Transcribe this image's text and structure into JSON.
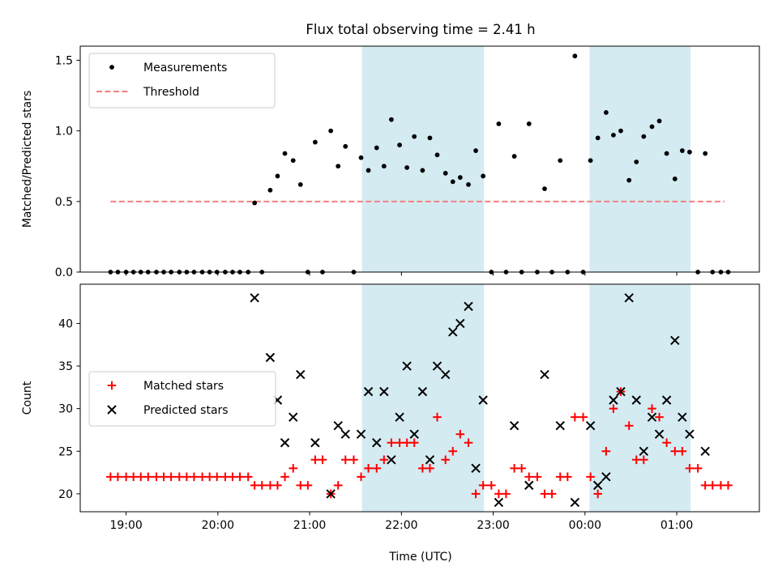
{
  "figure": {
    "title": "Flux total observing time = 2.41 h",
    "xlabel": "Time (UTC)"
  },
  "colors": {
    "shade": "#add8e6",
    "measurements": "#000000",
    "threshold": "#f08080",
    "matched": "#ff0000",
    "predicted": "#000000"
  },
  "chart_data": [
    {
      "type": "scatter",
      "panel": "top",
      "ylabel": "Matched/Predicted stars",
      "xlabel": "",
      "x_unit": "hours since 00:00 UTC",
      "xlim": [
        -5.5,
        1.9
      ],
      "ylim": [
        0.0,
        1.6
      ],
      "yticks": [
        0.0,
        0.5,
        1.0,
        1.5
      ],
      "ytick_labels": [
        "0.0",
        "0.5",
        "1.0",
        "1.5"
      ],
      "shaded_spans": [
        [
          -2.43,
          -1.1
        ],
        [
          0.05,
          1.15
        ]
      ],
      "legend_position": "upper left",
      "legend": [
        {
          "label": "Measurements",
          "kind": "dot"
        },
        {
          "label": "Threshold",
          "kind": "dashed"
        }
      ],
      "threshold": {
        "value": 0.5,
        "x_range": [
          -5.17,
          1.52
        ]
      },
      "series": [
        {
          "name": "Measurements",
          "points": [
            [
              -5.17,
              0
            ],
            [
              -5.09,
              0
            ],
            [
              -5.0,
              0
            ],
            [
              -4.92,
              0
            ],
            [
              -4.84,
              0
            ],
            [
              -4.76,
              0
            ],
            [
              -4.67,
              0
            ],
            [
              -4.59,
              0
            ],
            [
              -4.51,
              0
            ],
            [
              -4.42,
              0
            ],
            [
              -4.34,
              0
            ],
            [
              -4.26,
              0
            ],
            [
              -4.17,
              0
            ],
            [
              -4.09,
              0
            ],
            [
              -4.01,
              0
            ],
            [
              -3.92,
              0
            ],
            [
              -3.84,
              0
            ],
            [
              -3.76,
              0
            ],
            [
              -3.67,
              0
            ],
            [
              -3.6,
              0.49
            ],
            [
              -3.52,
              0
            ],
            [
              -3.43,
              0.58
            ],
            [
              -3.35,
              0.68
            ],
            [
              -3.27,
              0.84
            ],
            [
              -3.18,
              0.79
            ],
            [
              -3.1,
              0.62
            ],
            [
              -3.02,
              0
            ],
            [
              -2.94,
              0.92
            ],
            [
              -2.86,
              0
            ],
            [
              -2.77,
              1.0
            ],
            [
              -2.69,
              0.75
            ],
            [
              -2.61,
              0.89
            ],
            [
              -2.52,
              0
            ],
            [
              -2.44,
              0.81
            ],
            [
              -2.36,
              0.72
            ],
            [
              -2.27,
              0.88
            ],
            [
              -2.19,
              0.75
            ],
            [
              -2.11,
              1.08
            ],
            [
              -2.02,
              0.9
            ],
            [
              -1.94,
              0.74
            ],
            [
              -1.86,
              0.96
            ],
            [
              -1.77,
              0.72
            ],
            [
              -1.69,
              0.95
            ],
            [
              -1.61,
              0.83
            ],
            [
              -1.52,
              0.7
            ],
            [
              -1.44,
              0.64
            ],
            [
              -1.36,
              0.67
            ],
            [
              -1.27,
              0.62
            ],
            [
              -1.19,
              0.86
            ],
            [
              -1.11,
              0.68
            ],
            [
              -1.02,
              0
            ],
            [
              -0.94,
              1.05
            ],
            [
              -0.86,
              0
            ],
            [
              -0.77,
              0.82
            ],
            [
              -0.69,
              0
            ],
            [
              -0.61,
              1.05
            ],
            [
              -0.52,
              0
            ],
            [
              -0.44,
              0.59
            ],
            [
              -0.36,
              0
            ],
            [
              -0.27,
              0.79
            ],
            [
              -0.19,
              0
            ],
            [
              -0.11,
              1.53
            ],
            [
              -0.02,
              0
            ],
            [
              0.06,
              0.79
            ],
            [
              0.14,
              0.95
            ],
            [
              0.23,
              1.13
            ],
            [
              0.31,
              0.97
            ],
            [
              0.39,
              1.0
            ],
            [
              0.48,
              0.65
            ],
            [
              0.56,
              0.78
            ],
            [
              0.64,
              0.96
            ],
            [
              0.73,
              1.03
            ],
            [
              0.81,
              1.07
            ],
            [
              0.89,
              0.84
            ],
            [
              0.98,
              0.66
            ],
            [
              1.06,
              0.86
            ],
            [
              1.14,
              0.85
            ],
            [
              1.23,
              0
            ],
            [
              1.31,
              0.84
            ],
            [
              1.39,
              0
            ],
            [
              1.48,
              0
            ],
            [
              1.56,
              0
            ]
          ]
        }
      ]
    },
    {
      "type": "scatter",
      "panel": "bottom",
      "ylabel": "Count",
      "xlabel": "Time (UTC)",
      "x_unit": "hours since 00:00 UTC",
      "xlim": [
        -5.5,
        1.9
      ],
      "ylim": [
        17.9,
        44.6
      ],
      "yticks": [
        20,
        25,
        30,
        35,
        40
      ],
      "ytick_labels": [
        "20",
        "25",
        "30",
        "35",
        "40"
      ],
      "xticks": [
        -5,
        -4,
        -3,
        -2,
        -1,
        0,
        1
      ],
      "xtick_labels": [
        "19:00",
        "20:00",
        "21:00",
        "22:00",
        "23:00",
        "00:00",
        "01:00"
      ],
      "shaded_spans": [
        [
          -2.43,
          -1.1
        ],
        [
          0.05,
          1.15
        ]
      ],
      "legend_position": "center left",
      "legend": [
        {
          "label": "Matched stars",
          "kind": "plus"
        },
        {
          "label": "Predicted stars",
          "kind": "cross"
        }
      ],
      "series": [
        {
          "name": "Matched stars",
          "points": [
            [
              -5.17,
              22
            ],
            [
              -5.09,
              22
            ],
            [
              -5.0,
              22
            ],
            [
              -4.92,
              22
            ],
            [
              -4.84,
              22
            ],
            [
              -4.76,
              22
            ],
            [
              -4.67,
              22
            ],
            [
              -4.59,
              22
            ],
            [
              -4.51,
              22
            ],
            [
              -4.42,
              22
            ],
            [
              -4.34,
              22
            ],
            [
              -4.26,
              22
            ],
            [
              -4.17,
              22
            ],
            [
              -4.09,
              22
            ],
            [
              -4.01,
              22
            ],
            [
              -3.92,
              22
            ],
            [
              -3.84,
              22
            ],
            [
              -3.76,
              22
            ],
            [
              -3.67,
              22
            ],
            [
              -3.6,
              21
            ],
            [
              -3.52,
              21
            ],
            [
              -3.43,
              21
            ],
            [
              -3.35,
              21
            ],
            [
              -3.27,
              22
            ],
            [
              -3.18,
              23
            ],
            [
              -3.1,
              21
            ],
            [
              -3.02,
              21
            ],
            [
              -2.94,
              24
            ],
            [
              -2.86,
              24
            ],
            [
              -2.77,
              20
            ],
            [
              -2.69,
              21
            ],
            [
              -2.61,
              24
            ],
            [
              -2.52,
              24
            ],
            [
              -2.44,
              22
            ],
            [
              -2.36,
              23
            ],
            [
              -2.27,
              23
            ],
            [
              -2.19,
              24
            ],
            [
              -2.11,
              26
            ],
            [
              -2.02,
              26
            ],
            [
              -1.94,
              26
            ],
            [
              -1.86,
              26
            ],
            [
              -1.77,
              23
            ],
            [
              -1.69,
              23
            ],
            [
              -1.61,
              29
            ],
            [
              -1.52,
              24
            ],
            [
              -1.44,
              25
            ],
            [
              -1.36,
              27
            ],
            [
              -1.27,
              26
            ],
            [
              -1.19,
              20
            ],
            [
              -1.11,
              21
            ],
            [
              -1.02,
              21
            ],
            [
              -0.94,
              20
            ],
            [
              -0.86,
              20
            ],
            [
              -0.77,
              23
            ],
            [
              -0.69,
              23
            ],
            [
              -0.61,
              22
            ],
            [
              -0.52,
              22
            ],
            [
              -0.44,
              20
            ],
            [
              -0.36,
              20
            ],
            [
              -0.27,
              22
            ],
            [
              -0.19,
              22
            ],
            [
              -0.11,
              29
            ],
            [
              -0.02,
              29
            ],
            [
              0.06,
              22
            ],
            [
              0.14,
              20
            ],
            [
              0.23,
              25
            ],
            [
              0.31,
              30
            ],
            [
              0.39,
              32
            ],
            [
              0.48,
              28
            ],
            [
              0.56,
              24
            ],
            [
              0.64,
              24
            ],
            [
              0.73,
              30
            ],
            [
              0.81,
              29
            ],
            [
              0.89,
              26
            ],
            [
              0.98,
              25
            ],
            [
              1.06,
              25
            ],
            [
              1.14,
              23
            ],
            [
              1.23,
              23
            ],
            [
              1.31,
              21
            ],
            [
              1.39,
              21
            ],
            [
              1.48,
              21
            ],
            [
              1.56,
              21
            ]
          ]
        },
        {
          "name": "Predicted stars",
          "points": [
            [
              -3.6,
              43
            ],
            [
              -3.43,
              36
            ],
            [
              -3.35,
              31
            ],
            [
              -3.27,
              26
            ],
            [
              -3.18,
              29
            ],
            [
              -3.1,
              34
            ],
            [
              -2.94,
              26
            ],
            [
              -2.77,
              20
            ],
            [
              -2.69,
              28
            ],
            [
              -2.61,
              27
            ],
            [
              -2.44,
              27
            ],
            [
              -2.36,
              32
            ],
            [
              -2.27,
              26
            ],
            [
              -2.19,
              32
            ],
            [
              -2.11,
              24
            ],
            [
              -2.02,
              29
            ],
            [
              -1.94,
              35
            ],
            [
              -1.86,
              27
            ],
            [
              -1.77,
              32
            ],
            [
              -1.69,
              24
            ],
            [
              -1.61,
              35
            ],
            [
              -1.52,
              34
            ],
            [
              -1.44,
              39
            ],
            [
              -1.36,
              40
            ],
            [
              -1.27,
              42
            ],
            [
              -1.19,
              23
            ],
            [
              -1.11,
              31
            ],
            [
              -0.94,
              19
            ],
            [
              -0.77,
              28
            ],
            [
              -0.61,
              21
            ],
            [
              -0.44,
              34
            ],
            [
              -0.27,
              28
            ],
            [
              -0.11,
              19
            ],
            [
              0.06,
              28
            ],
            [
              0.14,
              21
            ],
            [
              0.23,
              22
            ],
            [
              0.31,
              31
            ],
            [
              0.39,
              32
            ],
            [
              0.48,
              43
            ],
            [
              0.56,
              31
            ],
            [
              0.64,
              25
            ],
            [
              0.73,
              29
            ],
            [
              0.81,
              27
            ],
            [
              0.89,
              31
            ],
            [
              0.98,
              38
            ],
            [
              1.06,
              29
            ],
            [
              1.14,
              27
            ],
            [
              1.31,
              25
            ]
          ]
        }
      ]
    }
  ]
}
